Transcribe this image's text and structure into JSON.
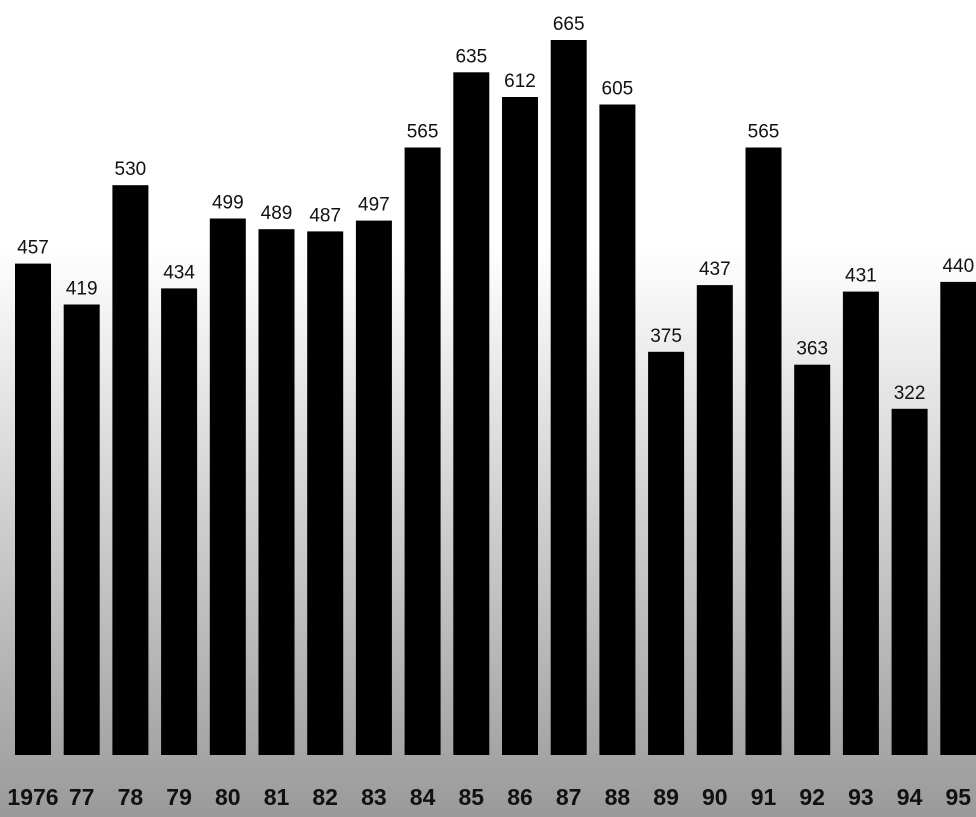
{
  "chart_data": {
    "type": "bar",
    "title": "",
    "xlabel": "",
    "ylabel": "",
    "categories": [
      "1976",
      "77",
      "78",
      "79",
      "80",
      "81",
      "82",
      "83",
      "84",
      "85",
      "86",
      "87",
      "88",
      "89",
      "90",
      "91",
      "92",
      "93",
      "94",
      "95"
    ],
    "values": [
      457,
      419,
      530,
      434,
      499,
      489,
      487,
      497,
      565,
      635,
      612,
      665,
      605,
      375,
      437,
      565,
      363,
      431,
      322,
      440
    ],
    "ylim": [
      0,
      665
    ],
    "grid": false,
    "legend": "none",
    "colors": {
      "bar": "#000000",
      "background_top": "#ffffff",
      "background_bottom": "#9a9a9a",
      "text": "#111111"
    }
  }
}
